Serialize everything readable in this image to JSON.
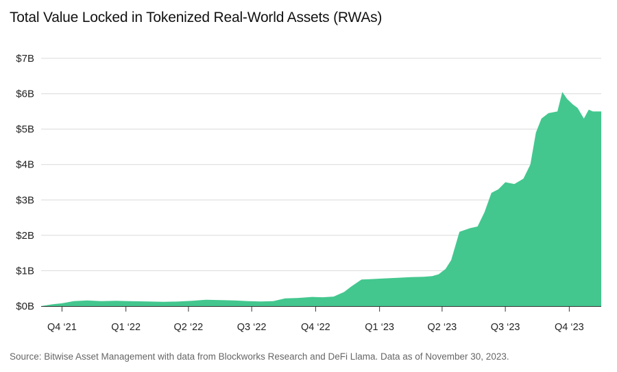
{
  "title": "Total Value Locked in Tokenized Real-World Assets (RWAs)",
  "source": "Source:  Bitwise Asset Management with data from Blockworks Research and DeFi Llama. Data as of November 30, 2023.",
  "colors": {
    "area": "#43c78e",
    "grid": "#d9d9d9",
    "axis": "#333333"
  },
  "chart_data": {
    "type": "area",
    "title": "Total Value Locked in Tokenized Real-World Assets (RWAs)",
    "ylabel": "",
    "xlabel": "",
    "ylim": [
      0,
      7
    ],
    "y_unit": "billions USD",
    "y_ticks": [
      0,
      1,
      2,
      3,
      4,
      5,
      6,
      7
    ],
    "y_tick_labels": [
      "$0B",
      "$1B",
      "$2B",
      "$3B",
      "$4B",
      "$5B",
      "$6B",
      "$7B"
    ],
    "xlim": [
      "2021-09-15",
      "2023-11-30"
    ],
    "x_ticks": [
      "2021-10-15",
      "2022-01-15",
      "2022-04-15",
      "2022-07-15",
      "2022-10-15",
      "2023-01-15",
      "2023-04-15",
      "2023-07-15",
      "2023-10-15"
    ],
    "x_tick_labels": [
      "Q4 ‘21",
      "Q1 ‘22",
      "Q2 ‘22",
      "Q3 ‘22",
      "Q4 ‘22",
      "Q1 ‘23",
      "Q2 ‘23",
      "Q3 ‘23",
      "Q4 ‘23"
    ],
    "grid": true,
    "legend": "none",
    "series": [
      {
        "x": [
          "2021-09-15",
          "2021-10-01",
          "2021-10-15",
          "2021-11-01",
          "2021-11-20",
          "2021-12-10",
          "2022-01-01",
          "2022-01-20",
          "2022-02-15",
          "2022-03-10",
          "2022-04-01",
          "2022-04-20",
          "2022-05-10",
          "2022-06-01",
          "2022-06-20",
          "2022-07-10",
          "2022-07-28",
          "2022-08-15",
          "2022-09-01",
          "2022-09-20",
          "2022-10-10",
          "2022-10-25",
          "2022-11-10",
          "2022-11-25",
          "2022-12-05",
          "2022-12-20",
          "2023-01-01",
          "2023-01-20",
          "2023-02-10",
          "2023-03-01",
          "2023-03-20",
          "2023-04-01",
          "2023-04-10",
          "2023-04-20",
          "2023-04-28",
          "2023-05-10",
          "2023-05-25",
          "2023-06-05",
          "2023-06-15",
          "2023-06-25",
          "2023-07-05",
          "2023-07-15",
          "2023-07-28",
          "2023-08-10",
          "2023-08-20",
          "2023-08-28",
          "2023-09-05",
          "2023-09-15",
          "2023-09-28",
          "2023-10-05",
          "2023-10-12",
          "2023-10-20",
          "2023-10-27",
          "2023-11-05",
          "2023-11-12",
          "2023-11-18",
          "2023-11-25",
          "2023-11-30"
        ],
        "values": [
          0.0,
          0.05,
          0.08,
          0.14,
          0.16,
          0.14,
          0.15,
          0.14,
          0.13,
          0.12,
          0.13,
          0.15,
          0.18,
          0.17,
          0.16,
          0.14,
          0.13,
          0.14,
          0.22,
          0.23,
          0.26,
          0.25,
          0.27,
          0.4,
          0.55,
          0.75,
          0.76,
          0.78,
          0.8,
          0.82,
          0.83,
          0.85,
          0.9,
          1.05,
          1.3,
          2.1,
          2.2,
          2.25,
          2.65,
          3.2,
          3.3,
          3.5,
          3.45,
          3.6,
          4.0,
          4.9,
          5.3,
          5.45,
          5.5,
          6.05,
          5.85,
          5.7,
          5.6,
          5.3,
          5.55,
          5.5,
          5.5,
          5.5
        ]
      }
    ]
  }
}
